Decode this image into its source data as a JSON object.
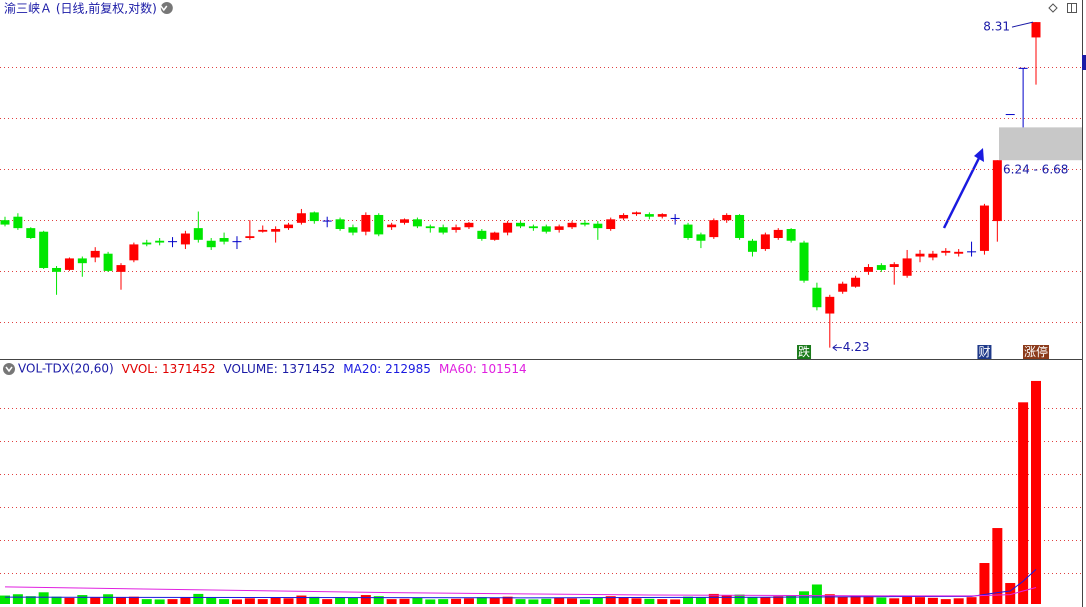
{
  "chart_data": [
    {
      "type": "candlestick",
      "title": "渝三峡Ａ (日线,前复权,对数)",
      "log_scale": true,
      "ylim": [
        4.14,
        8.7
      ],
      "grid": true,
      "up_color": "#ff0000",
      "down_color": "#00e600",
      "flat_color": "#0000c8",
      "open": [
        5.51,
        5.55,
        5.42,
        5.38,
        4.99,
        4.97,
        5.09,
        5.1,
        5.14,
        4.95,
        5.07,
        5.26,
        5.28,
        5.27,
        5.24,
        5.42,
        5.28,
        5.31,
        5.27,
        5.31,
        5.38,
        5.38,
        5.42,
        5.48,
        5.6,
        5.5,
        5.52,
        5.43,
        5.38,
        5.57,
        5.43,
        5.48,
        5.52,
        5.44,
        5.43,
        5.4,
        5.43,
        5.39,
        5.29,
        5.37,
        5.48,
        5.44,
        5.44,
        5.4,
        5.43,
        5.48,
        5.47,
        5.41,
        5.53,
        5.58,
        5.58,
        5.55,
        5.53,
        5.46,
        5.35,
        5.32,
        5.51,
        5.57,
        5.28,
        5.19,
        5.31,
        5.41,
        5.26,
        4.79,
        4.54,
        4.75,
        4.8,
        4.95,
        5.02,
        5.0,
        4.91,
        5.11,
        5.1,
        5.15,
        5.14,
        5.16,
        5.17,
        5.5,
        6.86,
        7.55,
        8.05
      ],
      "close": [
        5.46,
        5.42,
        5.31,
        4.99,
        4.95,
        5.09,
        5.04,
        5.17,
        4.96,
        5.02,
        5.24,
        5.24,
        5.26,
        5.27,
        5.36,
        5.29,
        5.21,
        5.27,
        5.27,
        5.33,
        5.4,
        5.41,
        5.46,
        5.59,
        5.5,
        5.5,
        5.41,
        5.37,
        5.57,
        5.35,
        5.46,
        5.52,
        5.44,
        5.42,
        5.37,
        5.43,
        5.48,
        5.3,
        5.37,
        5.48,
        5.44,
        5.42,
        5.38,
        5.44,
        5.48,
        5.46,
        5.42,
        5.52,
        5.57,
        5.6,
        5.55,
        5.58,
        5.53,
        5.31,
        5.28,
        5.51,
        5.57,
        5.31,
        5.16,
        5.35,
        5.4,
        5.28,
        4.86,
        4.6,
        4.7,
        4.83,
        4.89,
        5.0,
        4.97,
        5.03,
        5.09,
        5.14,
        5.14,
        5.17,
        5.16,
        5.16,
        5.68,
        6.24,
        6.86,
        7.55,
        8.31
      ],
      "low": [
        5.44,
        5.4,
        5.3,
        4.98,
        4.72,
        4.96,
        4.9,
        5.05,
        4.95,
        4.77,
        5.05,
        5.22,
        5.23,
        5.21,
        5.19,
        5.26,
        5.18,
        5.24,
        5.19,
        5.29,
        5.37,
        5.26,
        5.4,
        5.46,
        5.47,
        5.43,
        5.39,
        5.34,
        5.34,
        5.33,
        5.4,
        5.46,
        5.42,
        5.37,
        5.35,
        5.37,
        5.41,
        5.28,
        5.28,
        5.34,
        5.42,
        5.39,
        5.36,
        5.37,
        5.41,
        5.44,
        5.29,
        5.39,
        5.51,
        5.56,
        5.52,
        5.53,
        5.46,
        5.29,
        5.2,
        5.3,
        5.48,
        5.29,
        5.11,
        5.17,
        5.29,
        5.26,
        4.84,
        4.57,
        4.23,
        4.73,
        4.79,
        4.92,
        4.95,
        4.82,
        4.89,
        5.05,
        5.07,
        5.12,
        5.11,
        5.11,
        5.13,
        5.27,
        6.86,
        6.68,
        7.3
      ],
      "high": [
        5.55,
        5.59,
        5.43,
        5.39,
        5.01,
        5.1,
        5.11,
        5.21,
        5.16,
        5.04,
        5.26,
        5.29,
        5.31,
        5.32,
        5.39,
        5.61,
        5.31,
        5.37,
        5.33,
        5.51,
        5.45,
        5.44,
        5.48,
        5.64,
        5.61,
        5.55,
        5.54,
        5.46,
        5.6,
        5.59,
        5.48,
        5.53,
        5.54,
        5.46,
        5.46,
        5.46,
        5.49,
        5.41,
        5.38,
        5.5,
        5.5,
        5.46,
        5.46,
        5.46,
        5.5,
        5.51,
        5.5,
        5.54,
        5.59,
        5.61,
        5.6,
        5.59,
        5.58,
        5.48,
        5.37,
        5.53,
        5.59,
        5.58,
        5.3,
        5.37,
        5.42,
        5.42,
        5.28,
        4.84,
        4.72,
        4.85,
        4.91,
        5.03,
        5.04,
        5.05,
        5.18,
        5.18,
        5.17,
        5.2,
        5.19,
        5.27,
        5.7,
        6.24,
        6.86,
        7.55,
        8.31
      ],
      "max_label": 8.31,
      "min_label": 4.23,
      "gap": {
        "range": [
          6.24,
          6.68
        ],
        "label": "6.24 - 6.68"
      },
      "events": [
        {
          "at": 62,
          "text": "跌",
          "color": "#1a7a1a"
        },
        {
          "at": 76,
          "text": "财",
          "color": "#1f3a8a"
        },
        {
          "at": 80,
          "text": "涨停",
          "color": "#8b3a1a"
        }
      ]
    },
    {
      "type": "bar",
      "title": "VOL-TDX(20,60)",
      "ylim": [
        0,
        1408000
      ],
      "values": [
        52000,
        60000,
        48000,
        72000,
        45000,
        38000,
        55000,
        42000,
        60000,
        40000,
        45000,
        30000,
        28000,
        30000,
        40000,
        62000,
        42000,
        30000,
        28000,
        35000,
        30000,
        40000,
        35000,
        52000,
        44000,
        30000,
        42000,
        38000,
        55000,
        48000,
        30000,
        32000,
        38000,
        28000,
        30000,
        32000,
        35000,
        42000,
        40000,
        45000,
        30000,
        28000,
        32000,
        38000,
        35000,
        28000,
        40000,
        48000,
        42000,
        35000,
        32000,
        30000,
        28000,
        45000,
        40000,
        62000,
        55000,
        58000,
        42000,
        40000,
        48000,
        52000,
        78000,
        120000,
        60000,
        45000,
        52000,
        48000,
        40000,
        35000,
        50000,
        42000,
        38000,
        30000,
        35000,
        42000,
        252000,
        467000,
        129000,
        1240000,
        1371452
      ],
      "readouts": [
        {
          "name": "VVOL:",
          "value": 1371452,
          "color": "#e00000"
        },
        {
          "name": "VOLUME:",
          "value": 1371452,
          "color": "#1a1aa6"
        }
      ],
      "series": [
        {
          "name": "MA20:",
          "color": "#1a1ae0",
          "value": 212985,
          "x": [
            0,
            20,
            40,
            60,
            70,
            75,
            77,
            78,
            79,
            80
          ],
          "values": [
            42000,
            40000,
            38000,
            42000,
            46000,
            47000,
            70000,
            80000,
            140000,
            212985
          ]
        },
        {
          "name": "MA60:",
          "color": "#e020e0",
          "value": 101514,
          "x": [
            0,
            30,
            50,
            70,
            75,
            78,
            79,
            80
          ],
          "values": [
            105000,
            70000,
            55000,
            50000,
            50000,
            58000,
            80000,
            101514
          ]
        }
      ]
    }
  ]
}
